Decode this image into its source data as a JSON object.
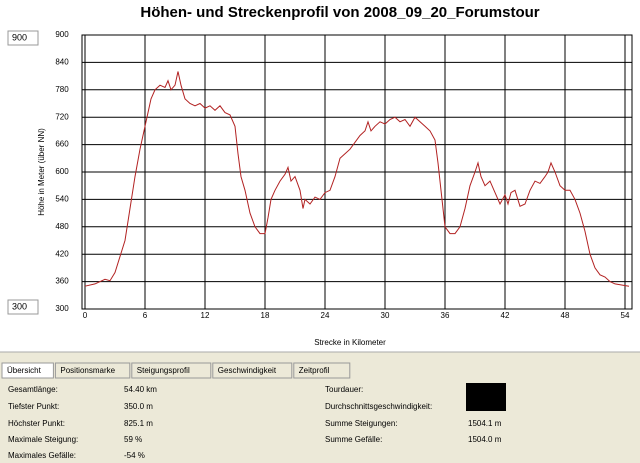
{
  "chart_data": {
    "type": "line",
    "title": "Höhen- und Streckenprofil von 2008_09_20_Forumstour",
    "x_label": "Strecke in Kilometer",
    "y_label": "Höhe in Meter (über NN)",
    "x": [
      0,
      1,
      2,
      2.5,
      3,
      4,
      4.5,
      5,
      5.5,
      6,
      6.3,
      6.6,
      7,
      7.5,
      8,
      8.3,
      8.6,
      9,
      9.3,
      9.6,
      10,
      10.5,
      11,
      11.5,
      12,
      12.5,
      13,
      13.5,
      14,
      14.5,
      15,
      15.3,
      15.6,
      16,
      16.5,
      17,
      17.5,
      18,
      18.3,
      18.6,
      19,
      19.5,
      20,
      20.3,
      20.6,
      21,
      21.5,
      21.8,
      22,
      22.5,
      23,
      23.5,
      24,
      24.5,
      25,
      25.5,
      26,
      26.5,
      27,
      27.5,
      28,
      28.3,
      28.6,
      29,
      29.5,
      30,
      30.5,
      31,
      31.5,
      32,
      32.5,
      33,
      33.5,
      34,
      34.5,
      35,
      35.3,
      35.6,
      36,
      36.5,
      37,
      37.5,
      38,
      38.5,
      39,
      39.3,
      39.6,
      40,
      40.5,
      41,
      41.5,
      42,
      42.3,
      42.6,
      43,
      43.5,
      44,
      44.5,
      45,
      45.5,
      46,
      46.3,
      46.6,
      47,
      47.5,
      48,
      48.5,
      49,
      49.5,
      50,
      50.5,
      51,
      51.5,
      52,
      52.5,
      53,
      54.4
    ],
    "series": [
      {
        "name": "Höhe",
        "color": "#b22222",
        "values": [
          350,
          355,
          365,
          362,
          380,
          450,
          520,
          590,
          650,
          700,
          730,
          760,
          780,
          790,
          785,
          800,
          780,
          790,
          820,
          790,
          760,
          750,
          745,
          750,
          740,
          745,
          735,
          745,
          730,
          725,
          700,
          640,
          590,
          560,
          510,
          480,
          465,
          465,
          500,
          540,
          560,
          580,
          595,
          610,
          580,
          590,
          560,
          520,
          540,
          530,
          545,
          540,
          555,
          560,
          590,
          630,
          640,
          650,
          665,
          680,
          690,
          710,
          690,
          700,
          710,
          705,
          715,
          720,
          710,
          715,
          700,
          720,
          710,
          700,
          690,
          670,
          620,
          560,
          480,
          465,
          465,
          480,
          520,
          570,
          600,
          620,
          590,
          570,
          580,
          555,
          530,
          550,
          530,
          555,
          560,
          525,
          530,
          560,
          580,
          575,
          590,
          600,
          620,
          600,
          570,
          560,
          560,
          540,
          510,
          470,
          420,
          390,
          375,
          370,
          360,
          355,
          350
        ]
      }
    ],
    "xlim": [
      0,
      54.7
    ],
    "ylim": [
      300,
      900
    ],
    "xticks": [
      0,
      6,
      12,
      18,
      24,
      30,
      36,
      42,
      48,
      54
    ],
    "yticks": [
      300,
      360,
      420,
      480,
      540,
      600,
      660,
      720,
      780,
      840,
      900
    ],
    "grid": true
  },
  "range_inputs": [
    "900",
    "300"
  ],
  "tabs": [
    "Übersicht",
    "Positionsmarke",
    "Steigungsprofil",
    "Geschwindigkeit",
    "Zeitprofil"
  ],
  "stats_left": [
    [
      "Gesamtlänge:",
      "54.40 km"
    ],
    [
      "Tiefster Punkt:",
      "350.0 m"
    ],
    [
      "Höchster Punkt:",
      "825.1 m"
    ],
    [
      "Maximale Steigung:",
      "59 %"
    ],
    [
      "Maximales Gefälle:",
      "-54 %"
    ]
  ],
  "stats_right": [
    [
      "Tourdauer:",
      ""
    ],
    [
      "Durchschnittsgeschwindigkeit:",
      ""
    ],
    [
      "Summe Steigungen:",
      "1504.1 m"
    ],
    [
      "Summe Gefälle:",
      "1504.0 m"
    ]
  ]
}
